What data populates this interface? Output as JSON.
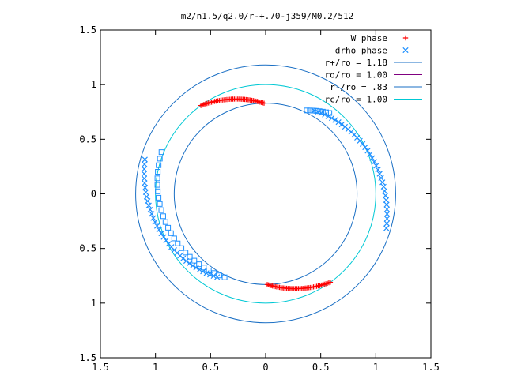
{
  "chart_data": {
    "type": "scatter",
    "title": "m2/n1.5/q2.0/r-+.70-j359/M0.2/512",
    "xlim": [
      -1.5,
      1.5
    ],
    "ylim": [
      -1.5,
      1.5
    ],
    "x_ticks": [
      {
        "value": -1.5,
        "label": "1.5"
      },
      {
        "value": -1.0,
        "label": "1"
      },
      {
        "value": -0.5,
        "label": "0.5"
      },
      {
        "value": 0.0,
        "label": "0"
      },
      {
        "value": 0.5,
        "label": "0.5"
      },
      {
        "value": 1.0,
        "label": "1"
      },
      {
        "value": 1.5,
        "label": "1.5"
      }
    ],
    "y_ticks": [
      {
        "value": 1.5,
        "label": "1.5"
      },
      {
        "value": 1.0,
        "label": "1"
      },
      {
        "value": 0.5,
        "label": "0.5"
      },
      {
        "value": 0.0,
        "label": "0"
      },
      {
        "value": -0.5,
        "label": "0.5"
      },
      {
        "value": -1.0,
        "label": "1"
      },
      {
        "value": -1.5,
        "label": "1.5"
      }
    ],
    "grid": false,
    "legend_position": "top-right",
    "legend": [
      {
        "label": "W phase",
        "kind": "marker",
        "marker": "plus",
        "color": "#ff0000"
      },
      {
        "label": "drho phase",
        "kind": "marker",
        "marker": "cross",
        "color": "#1e90ff"
      },
      {
        "label": "r+/ro = 1.18",
        "kind": "line",
        "color": "#1a6fc4"
      },
      {
        "label": "ro/ro = 1.00",
        "kind": "line",
        "color": "#800080"
      },
      {
        "label": "r-/ro = .83",
        "kind": "line",
        "color": "#1a6fc4"
      },
      {
        "label": "rc/ro = 1.00",
        "kind": "line",
        "color": "#00c8d4"
      }
    ],
    "circles": [
      {
        "name": "r+/ro = 1.18",
        "radius": 1.18,
        "color": "#1a6fc4"
      },
      {
        "name": "rc/ro = 1.00",
        "radius": 1.0,
        "color": "#00c8d4"
      },
      {
        "name": "r-/ro = .83",
        "radius": 0.83,
        "color": "#1a6fc4"
      }
    ],
    "series": [
      {
        "name": "W phase",
        "marker": "plus",
        "color": "#ff0000",
        "arcs": [
          {
            "r_start": 0.83,
            "r_end": 1.0,
            "angle_start_deg": 91,
            "angle_end_deg": 126,
            "count": 44
          },
          {
            "r_start": 0.83,
            "r_end": 1.0,
            "angle_start_deg": 271,
            "angle_end_deg": 306,
            "count": 44
          }
        ]
      },
      {
        "name": "drho phase",
        "marker": "cross",
        "color": "#1e90ff",
        "arcs": [
          {
            "r_start": 0.88,
            "r_end": 1.14,
            "angle_start_deg": 60,
            "angle_end_deg": -16,
            "count": 36
          },
          {
            "r_start": 0.88,
            "r_end": 1.14,
            "angle_start_deg": 240,
            "angle_end_deg": 164,
            "count": 36
          }
        ]
      },
      {
        "name": "drho phase (squares)",
        "marker": "square",
        "color": "#1e90ff",
        "arcs": [
          {
            "r_start": 0.85,
            "r_end": 0.94,
            "angle_start_deg": 64,
            "angle_end_deg": 52,
            "count": 8
          },
          {
            "r_start": 0.85,
            "r_end": 1.02,
            "angle_start_deg": 244,
            "angle_end_deg": 158,
            "count": 26
          }
        ]
      }
    ]
  }
}
